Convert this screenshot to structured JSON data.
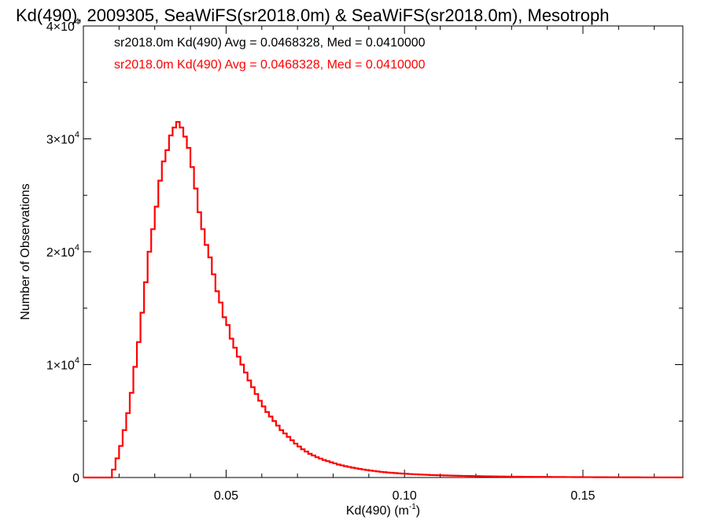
{
  "chart_data": {
    "type": "histogram",
    "title": "Kd(490), 2009305, SeaWiFS(sr2018.0m) & SeaWiFS(sr2018.0m), Mesotroph",
    "xlabel_base": "Kd(490) (m",
    "xlabel_sup": "-1",
    "xlabel_end": ")",
    "ylabel": "Number of Observations",
    "xlim": [
      0.01,
      0.178
    ],
    "ylim": [
      0,
      40000
    ],
    "x_ticks": [
      {
        "value": 0.05,
        "label": "0.05"
      },
      {
        "value": 0.1,
        "label": "0.10"
      },
      {
        "value": 0.15,
        "label": "0.15"
      }
    ],
    "y_ticks": [
      {
        "value": 0,
        "base": "0",
        "exp": ""
      },
      {
        "value": 10000,
        "base": "1×10",
        "exp": "4"
      },
      {
        "value": 20000,
        "base": "2×10",
        "exp": "4"
      },
      {
        "value": 30000,
        "base": "3×10",
        "exp": "4"
      },
      {
        "value": 40000,
        "base": "4×10",
        "exp": "4"
      }
    ],
    "legend": [
      {
        "text": "sr2018.0m Kd(490) Avg = 0.0468328, Med = 0.0410000",
        "color": "#000000"
      },
      {
        "text": "sr2018.0m Kd(490) Avg = 0.0468328, Med = 0.0410000",
        "color": "#ff0000"
      }
    ],
    "legend_position": "top-left",
    "series": [
      {
        "color": "#ff0000",
        "bin_width": 0.001,
        "points": [
          [
            0.01,
            0
          ],
          [
            0.017,
            0
          ],
          [
            0.018,
            700
          ],
          [
            0.019,
            1700
          ],
          [
            0.02,
            2800
          ],
          [
            0.021,
            4200
          ],
          [
            0.022,
            5700
          ],
          [
            0.023,
            7500
          ],
          [
            0.024,
            9800
          ],
          [
            0.025,
            12000
          ],
          [
            0.026,
            14600
          ],
          [
            0.027,
            17300
          ],
          [
            0.028,
            20000
          ],
          [
            0.029,
            22000
          ],
          [
            0.03,
            24000
          ],
          [
            0.031,
            26300
          ],
          [
            0.032,
            28000
          ],
          [
            0.033,
            29000
          ],
          [
            0.034,
            30300
          ],
          [
            0.035,
            31000
          ],
          [
            0.036,
            31500
          ],
          [
            0.037,
            31000
          ],
          [
            0.038,
            30200
          ],
          [
            0.039,
            29200
          ],
          [
            0.04,
            27500
          ],
          [
            0.041,
            25600
          ],
          [
            0.042,
            23500
          ],
          [
            0.043,
            22000
          ],
          [
            0.044,
            20600
          ],
          [
            0.045,
            19500
          ],
          [
            0.046,
            18000
          ],
          [
            0.047,
            16500
          ],
          [
            0.048,
            15500
          ],
          [
            0.049,
            14200
          ],
          [
            0.05,
            13500
          ],
          [
            0.051,
            12300
          ],
          [
            0.052,
            11500
          ],
          [
            0.053,
            10700
          ],
          [
            0.054,
            10000
          ],
          [
            0.055,
            9300
          ],
          [
            0.056,
            8600
          ],
          [
            0.057,
            8000
          ],
          [
            0.058,
            7400
          ],
          [
            0.059,
            6800
          ],
          [
            0.06,
            6300
          ],
          [
            0.061,
            5800
          ],
          [
            0.062,
            5400
          ],
          [
            0.063,
            5000
          ],
          [
            0.064,
            4600
          ],
          [
            0.065,
            4200
          ],
          [
            0.066,
            3900
          ],
          [
            0.067,
            3600
          ],
          [
            0.068,
            3300
          ],
          [
            0.069,
            3000
          ],
          [
            0.07,
            2750
          ],
          [
            0.071,
            2500
          ],
          [
            0.072,
            2300
          ],
          [
            0.073,
            2100
          ],
          [
            0.074,
            1950
          ],
          [
            0.075,
            1800
          ],
          [
            0.077,
            1550
          ],
          [
            0.079,
            1350
          ],
          [
            0.081,
            1150
          ],
          [
            0.083,
            1000
          ],
          [
            0.085,
            870
          ],
          [
            0.087,
            760
          ],
          [
            0.089,
            660
          ],
          [
            0.091,
            580
          ],
          [
            0.093,
            500
          ],
          [
            0.095,
            440
          ],
          [
            0.098,
            370
          ],
          [
            0.101,
            310
          ],
          [
            0.104,
            260
          ],
          [
            0.107,
            220
          ],
          [
            0.11,
            190
          ],
          [
            0.115,
            150
          ],
          [
            0.12,
            120
          ],
          [
            0.125,
            95
          ],
          [
            0.13,
            75
          ],
          [
            0.135,
            60
          ],
          [
            0.14,
            50
          ],
          [
            0.145,
            40
          ],
          [
            0.15,
            32
          ],
          [
            0.155,
            25
          ],
          [
            0.16,
            20
          ],
          [
            0.165,
            15
          ],
          [
            0.17,
            12
          ],
          [
            0.175,
            10
          ],
          [
            0.178,
            8
          ]
        ]
      }
    ]
  }
}
